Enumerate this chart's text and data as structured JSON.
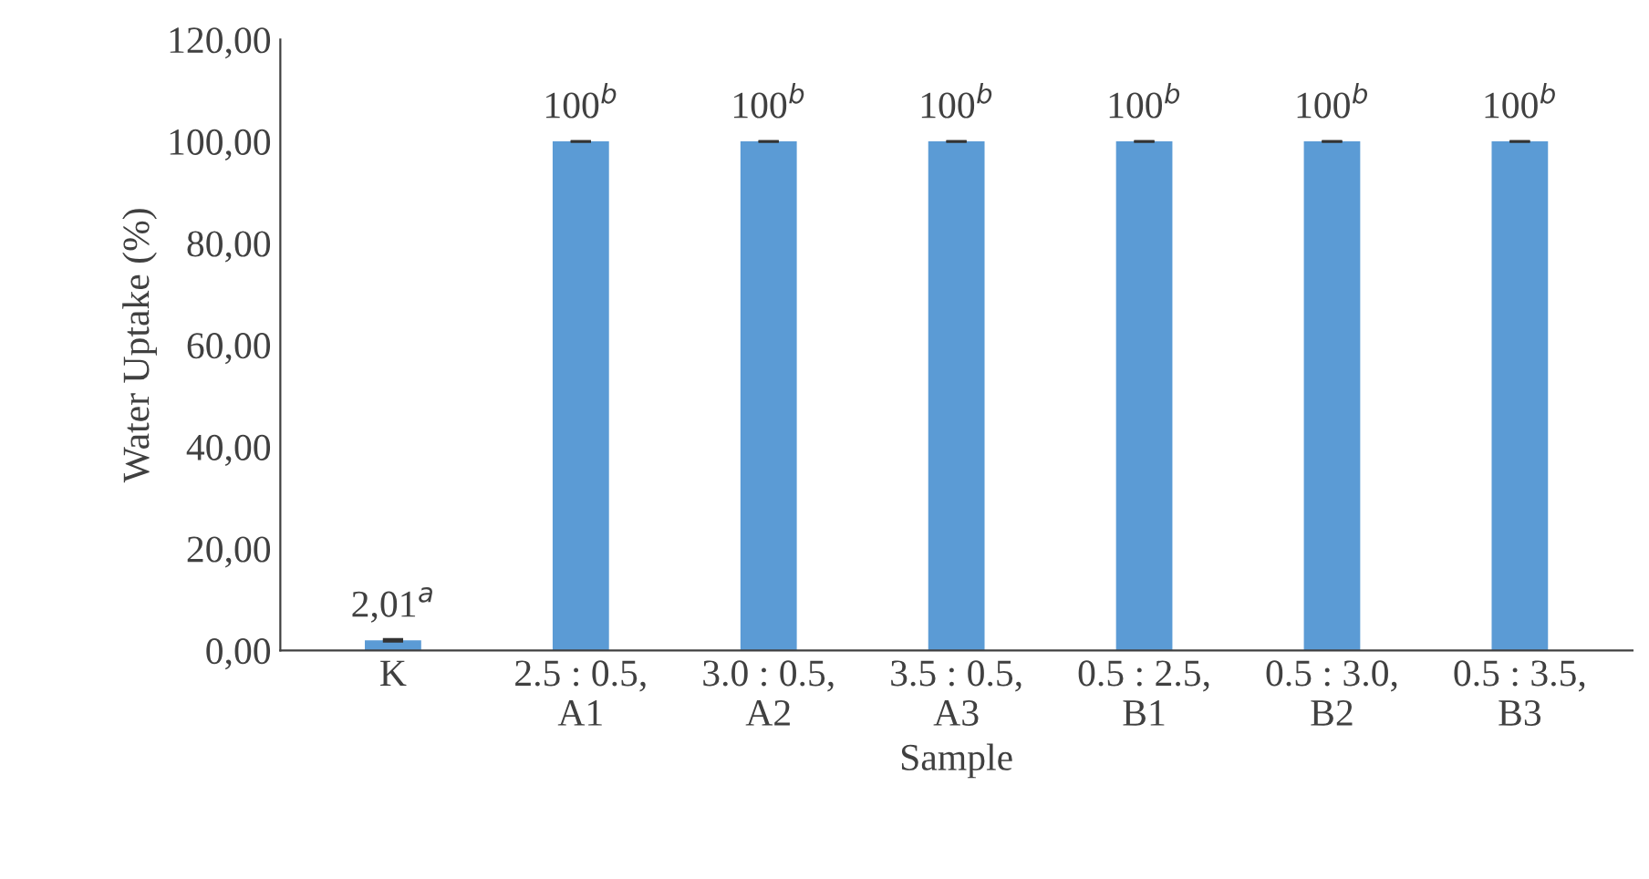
{
  "chart_data": {
    "type": "bar",
    "xlabel": "Sample",
    "ylabel": "Water Uptake (%)",
    "categories": [
      "K",
      "2.5 : 0.5,\nA1",
      "3.0 : 0.5,\nA2",
      "3.5 : 0.5,\nA3",
      "0.5 : 2.5,\nB1",
      "0.5 : 3.0,\nB2",
      "0.5 : 3.5,\nB3"
    ],
    "values": [
      2.01,
      100,
      100,
      100,
      100,
      100,
      100
    ],
    "errors": [
      0.2,
      0,
      0,
      0,
      0,
      0,
      0
    ],
    "value_labels": [
      "2,01$^{a}$",
      "100$^{b}$",
      "100$^{b}$",
      "100$^{b}$",
      "100$^{b}$",
      "100$^{b}$",
      "100$^{b}$"
    ],
    "color": "#5b9bd5",
    "ylim": [
      0,
      120
    ],
    "yticks": [
      {
        "value": 0,
        "label": "0,00"
      },
      {
        "value": 20,
        "label": "20,00"
      },
      {
        "value": 40,
        "label": "40,00"
      },
      {
        "value": 60,
        "label": "60,00"
      },
      {
        "value": 80,
        "label": "80,00"
      },
      {
        "value": 100,
        "label": "100,00"
      },
      {
        "value": 120,
        "label": "120,00"
      }
    ],
    "grid": false,
    "legend": false
  }
}
